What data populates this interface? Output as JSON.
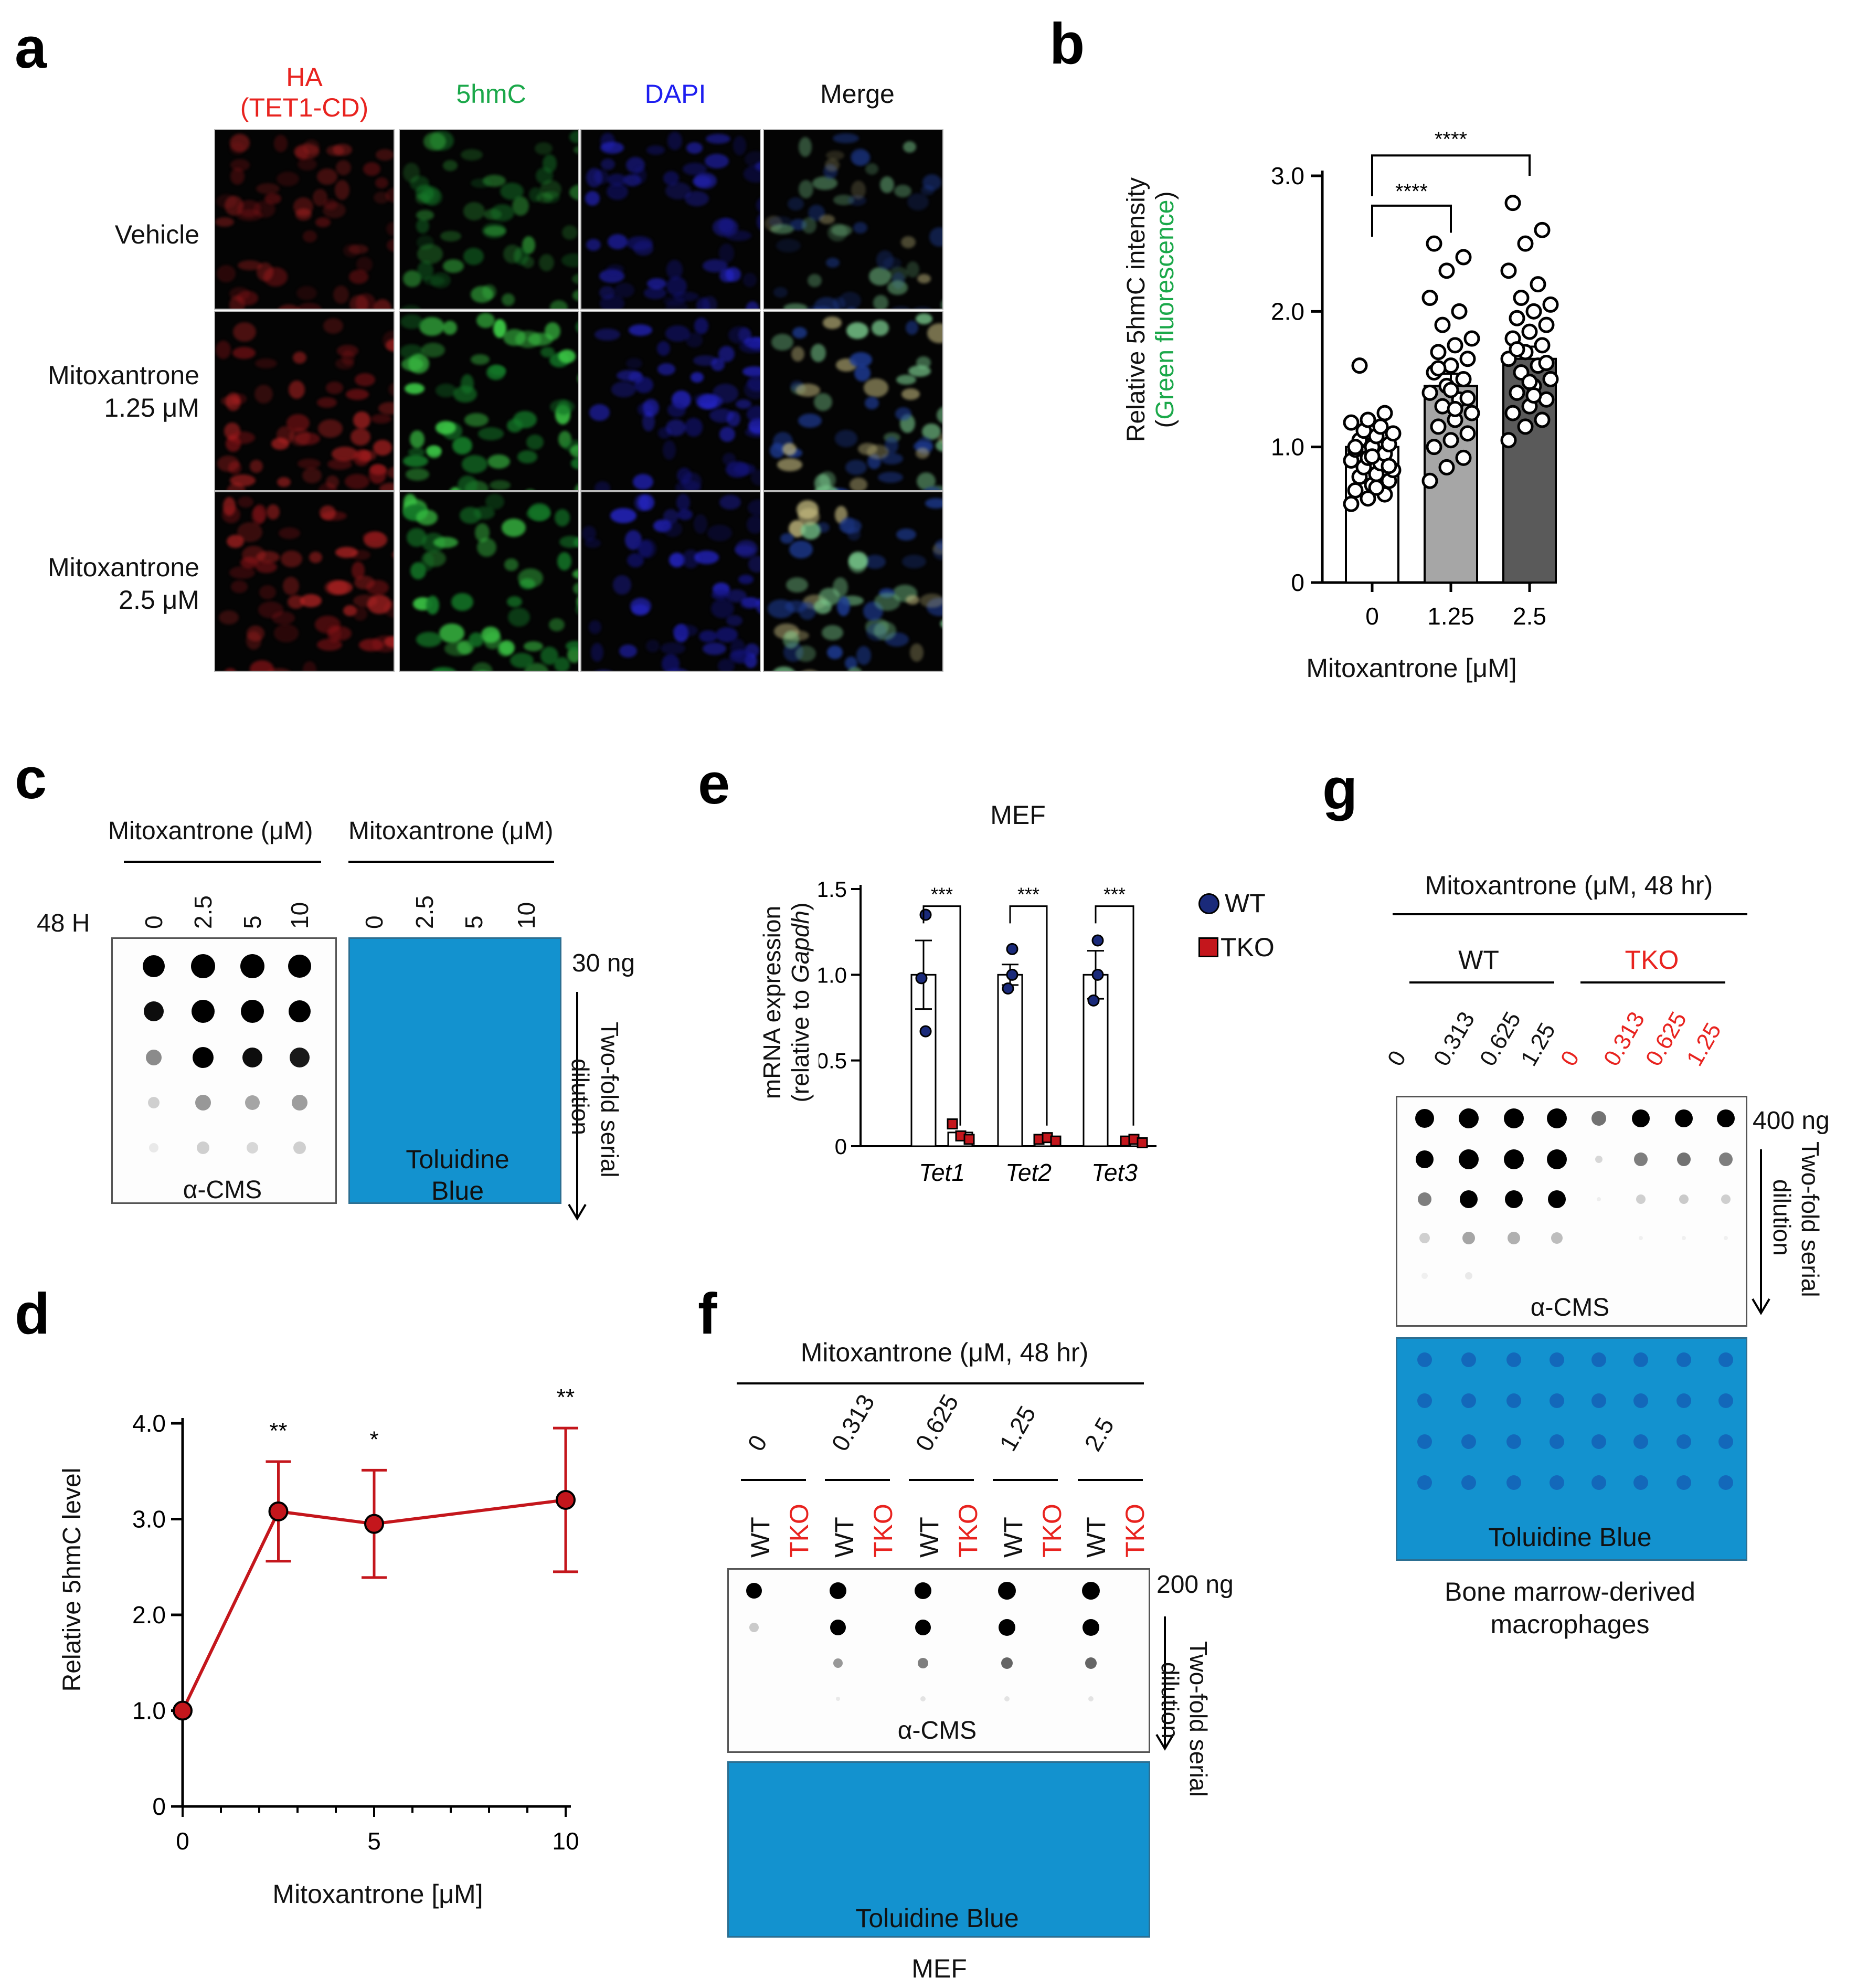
{
  "panels": {
    "a": "a",
    "b": "b",
    "c": "c",
    "d": "d",
    "e": "e",
    "f": "f",
    "g": "g"
  },
  "panel_a": {
    "col_headers": [
      "HA",
      "(TET1-CD)",
      "5hmC",
      "DAPI",
      "Merge"
    ],
    "col_colors": [
      "#e8231f",
      "#e8231f",
      "#1ba84a",
      "#1e1ef0",
      "#111111"
    ],
    "row_labels": [
      [
        "Vehicle"
      ],
      [
        "Mitoxantrone",
        "1.25  μM"
      ],
      [
        "Mitoxantrone",
        "2.5  μM"
      ]
    ]
  },
  "panel_b": {
    "ylabel_main": "Relative 5hmC intensity",
    "ylabel_sub_open": "(",
    "ylabel_sub_green": "Green fluorescence",
    "ylabel_sub_close": ")",
    "yticks": [
      "0",
      "1.0",
      "2.0",
      "3.0"
    ],
    "xticks": [
      "0",
      "1.25",
      "2.5"
    ],
    "xlabel": "Mitoxantrone  [μM]",
    "sig": [
      "****",
      "****"
    ]
  },
  "panel_c": {
    "header_left": "Mitoxantrone  (μM)",
    "header_right": "Mitoxantrone  (μM)",
    "time_label": "48 H",
    "doses": [
      "0",
      "2.5",
      "5",
      "10"
    ],
    "blot_label": "α-CMS",
    "stain_label_1": "Toluidine",
    "stain_label_2": "Blue",
    "amount": "30 ng",
    "dilution_1": "Two-fold serial",
    "dilution_2": "dilution"
  },
  "panel_d": {
    "ylabel": "Relative 5hmC level",
    "xlabel": "Mitoxantrone  [μM]",
    "yticks": [
      "0",
      "1.0",
      "2.0",
      "3.0",
      "4.0"
    ],
    "xticks": [
      "0",
      "5",
      "10"
    ],
    "sig": [
      "**",
      "*",
      "**"
    ]
  },
  "panel_e": {
    "title": "MEF",
    "ylabel_1": "mRNA expression",
    "ylabel_2_pre": "(relative to ",
    "ylabel_2_ital": "Gapdh",
    "ylabel_2_post": ")",
    "yticks": [
      "0",
      "0.5",
      "1.0",
      "1.5"
    ],
    "genes": [
      "Tet1",
      "Tet2",
      "Tet3"
    ],
    "sig": [
      "***",
      "***",
      "***"
    ],
    "legend": [
      "WT",
      "TKO"
    ]
  },
  "panel_f": {
    "header": "Mitoxantrone (μM, 48 hr)",
    "doses": [
      "0",
      "0.313",
      "0.625",
      "1.25",
      "2.5"
    ],
    "geno": [
      "WT",
      "TKO"
    ],
    "blot_label": "α-CMS",
    "stain_label": "Toluidine  Blue",
    "amount": "200  ng",
    "dilution_1": "Two-fold serial",
    "dilution_2": "dilution",
    "footer": "MEF"
  },
  "panel_g": {
    "header": "Mitoxantrone (μM, 48 hr)",
    "group_wt": "WT",
    "group_tko": "TKO",
    "doses": [
      "0",
      "0.313",
      "0.625",
      "1.25"
    ],
    "blot_label": "α-CMS",
    "stain_label": "Toluidine  Blue",
    "amount": "400  ng",
    "dilution_1": "Two-fold serial",
    "dilution_2": "dilution",
    "footer_1": "Bone marrow-derived",
    "footer_2": "macrophages"
  },
  "colors": {
    "red": "#e8231f",
    "green": "#1ba84a",
    "blue": "#1e1ef0",
    "stain": "#1392cf",
    "line_red": "#c4161c",
    "navy": "#1a2a7a"
  },
  "chart_data": [
    {
      "type": "bar",
      "panel": "b",
      "categories": [
        "0",
        "1.25",
        "2.5"
      ],
      "values": [
        1.0,
        1.45,
        1.65
      ],
      "errors": [
        0.06,
        0.09,
        0.09
      ],
      "points": [
        [
          0.58,
          0.62,
          0.65,
          0.68,
          0.72,
          0.75,
          0.78,
          0.8,
          0.83,
          0.85,
          0.88,
          0.9,
          0.92,
          0.95,
          0.98,
          1.0,
          1.02,
          1.05,
          1.08,
          1.1,
          1.12,
          1.15,
          1.18,
          1.2,
          1.25,
          1.0,
          0.93,
          0.86,
          1.6,
          0.7
        ],
        [
          0.75,
          0.85,
          0.92,
          1.0,
          1.05,
          1.1,
          1.15,
          1.2,
          1.25,
          1.3,
          1.35,
          1.4,
          1.45,
          1.5,
          1.55,
          1.6,
          1.65,
          1.7,
          1.75,
          1.8,
          1.9,
          2.0,
          2.1,
          2.3,
          2.4,
          2.5,
          1.42,
          1.36,
          1.58,
          1.28
        ],
        [
          1.05,
          1.15,
          1.2,
          1.25,
          1.3,
          1.35,
          1.4,
          1.45,
          1.5,
          1.55,
          1.6,
          1.65,
          1.7,
          1.75,
          1.8,
          1.85,
          1.9,
          1.95,
          2.0,
          2.05,
          2.1,
          2.2,
          2.3,
          2.5,
          2.6,
          2.8,
          1.48,
          1.62,
          1.72,
          1.38
        ]
      ],
      "ylim": [
        0,
        3.0
      ],
      "ylabel": "Relative 5hmC intensity (Green fluorescence)",
      "xlabel": "Mitoxantrone  [μM]"
    },
    {
      "type": "line",
      "panel": "d",
      "x": [
        0,
        2.5,
        5,
        10
      ],
      "y": [
        1.0,
        3.08,
        2.95,
        3.2
      ],
      "errors": [
        0.0,
        0.52,
        0.56,
        0.75
      ],
      "xlim": [
        0,
        10
      ],
      "ylim": [
        0,
        4.0
      ],
      "ylabel": "Relative 5hmC level",
      "xlabel": "Mitoxantrone  [μM]"
    },
    {
      "type": "bar",
      "panel": "e",
      "categories": [
        "Tet1",
        "Tet2",
        "Tet3"
      ],
      "series": [
        {
          "name": "WT",
          "values": [
            1.0,
            1.0,
            1.0
          ],
          "errors": [
            0.2,
            0.06,
            0.14
          ],
          "points": [
            [
              1.35,
              0.98,
              0.67
            ],
            [
              1.15,
              0.92,
              1.0
            ],
            [
              1.2,
              0.85,
              1.0
            ]
          ]
        },
        {
          "name": "TKO",
          "values": [
            0.08,
            0.04,
            0.03
          ],
          "errors": [
            0.03,
            0.01,
            0.01
          ],
          "points": [
            [
              0.13,
              0.06,
              0.04
            ],
            [
              0.04,
              0.05,
              0.03
            ],
            [
              0.03,
              0.04,
              0.02
            ]
          ]
        }
      ],
      "ylim": [
        0,
        1.5
      ],
      "ylabel": "mRNA expression (relative to Gapdh)",
      "title": "MEF"
    }
  ]
}
